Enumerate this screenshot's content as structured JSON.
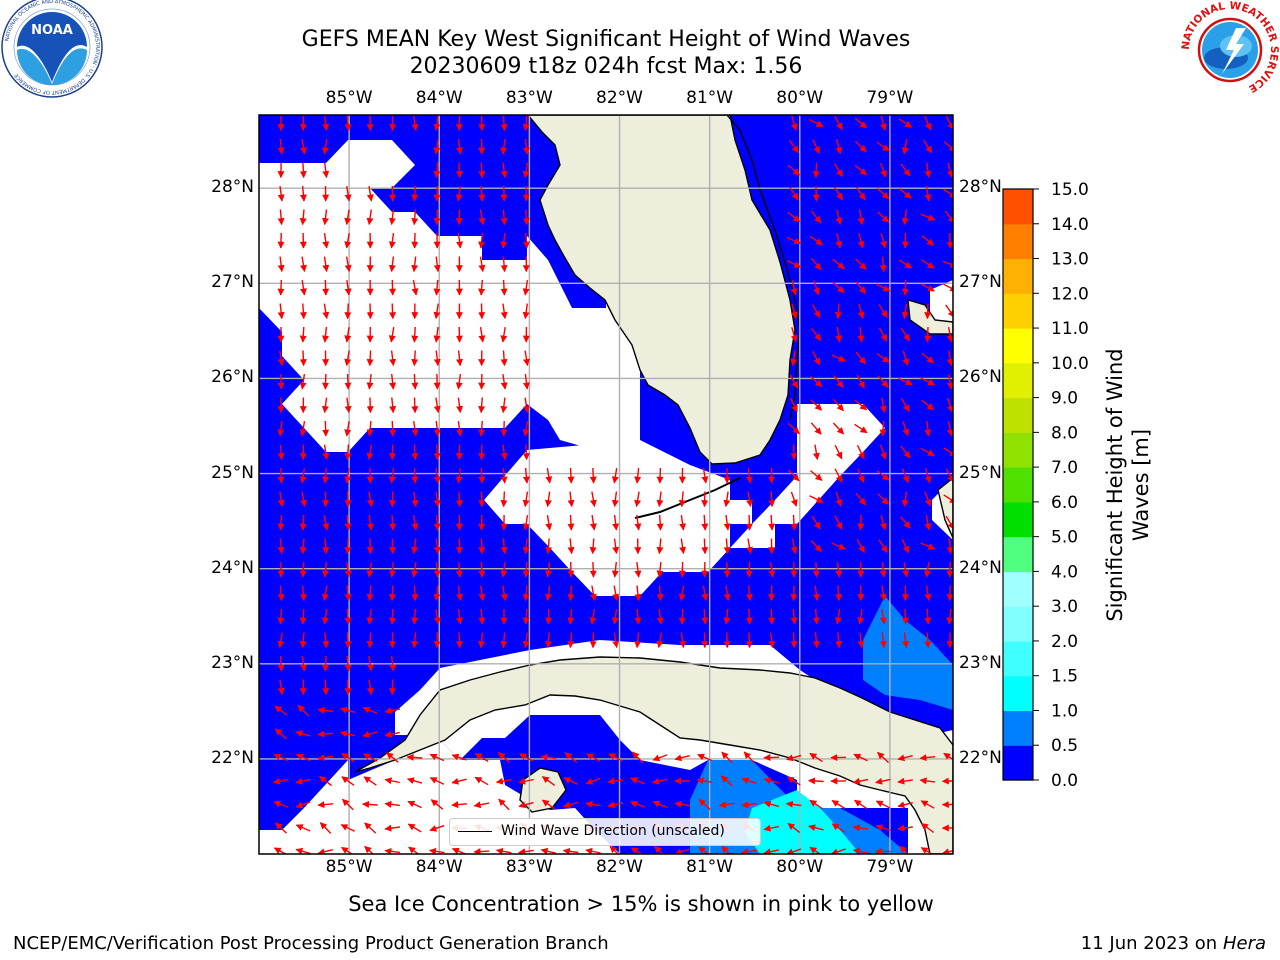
{
  "title_line1": "GEFS MEAN Key West Significant Height of Wind Waves",
  "title_line2": "20230609 t18z 024h fcst   Max: 1.56",
  "logos": {
    "left": {
      "name": "noaa-logo",
      "text": "NOAA",
      "ring_text": "NATIONAL OCEANIC AND ATMOSPHERIC ADMINISTRATION · U.S. DEPARTMENT OF COMMERCE"
    },
    "right": {
      "name": "nws-logo",
      "ring_text": "NATIONAL WEATHER SERVICE"
    }
  },
  "map": {
    "lon_ticks": [
      "85°W",
      "84°W",
      "83°W",
      "82°W",
      "81°W",
      "80°W",
      "79°W"
    ],
    "lat_ticks": [
      "28°N",
      "27°N",
      "26°N",
      "25°N",
      "24°N",
      "23°N",
      "22°N"
    ],
    "lon_values": [
      -85,
      -84,
      -83,
      -82,
      -81,
      -80,
      -79
    ],
    "lat_values": [
      28,
      27,
      26,
      25,
      24,
      23,
      22
    ],
    "extent": {
      "lon": [
        -86.0,
        -78.3
      ],
      "lat": [
        21.0,
        28.77
      ]
    },
    "colors": {
      "ocean_low": "#0000ff",
      "ocean_mid": "#0080ff",
      "ocean_high": "#00ffff",
      "land": "#eeeedd",
      "no_data": "#ffffff",
      "arrow": "#ff0000",
      "grid": "#b0b0b0"
    }
  },
  "legend_label": "Wind Wave Direction (unscaled)",
  "colorbar": {
    "label_line1": "Significant Height of Wind",
    "label_line2": "Waves [m]",
    "ticks": [
      "0.0",
      "0.5",
      "1.0",
      "1.5",
      "2.0",
      "3.0",
      "4.0",
      "5.0",
      "6.0",
      "7.0",
      "8.0",
      "9.0",
      "10.0",
      "11.0",
      "12.0",
      "13.0",
      "14.0",
      "15.0"
    ],
    "colors": [
      "#0000ff",
      "#0080ff",
      "#00ffff",
      "#40ffff",
      "#80ffff",
      "#a0ffff",
      "#50ff80",
      "#00e000",
      "#50e000",
      "#90e000",
      "#c0e000",
      "#e0f000",
      "#ffff00",
      "#ffd000",
      "#ffb000",
      "#ff8000",
      "#ff5000",
      "#ff2000",
      "#ff0000"
    ]
  },
  "subtitle": "Sea Ice Concentration > 15% is shown in pink to yellow",
  "footer_left": "NCEP/EMC/Verification Post Processing Product Generation Branch",
  "footer_date": "11 Jun 2023 on",
  "footer_host": "Hera"
}
